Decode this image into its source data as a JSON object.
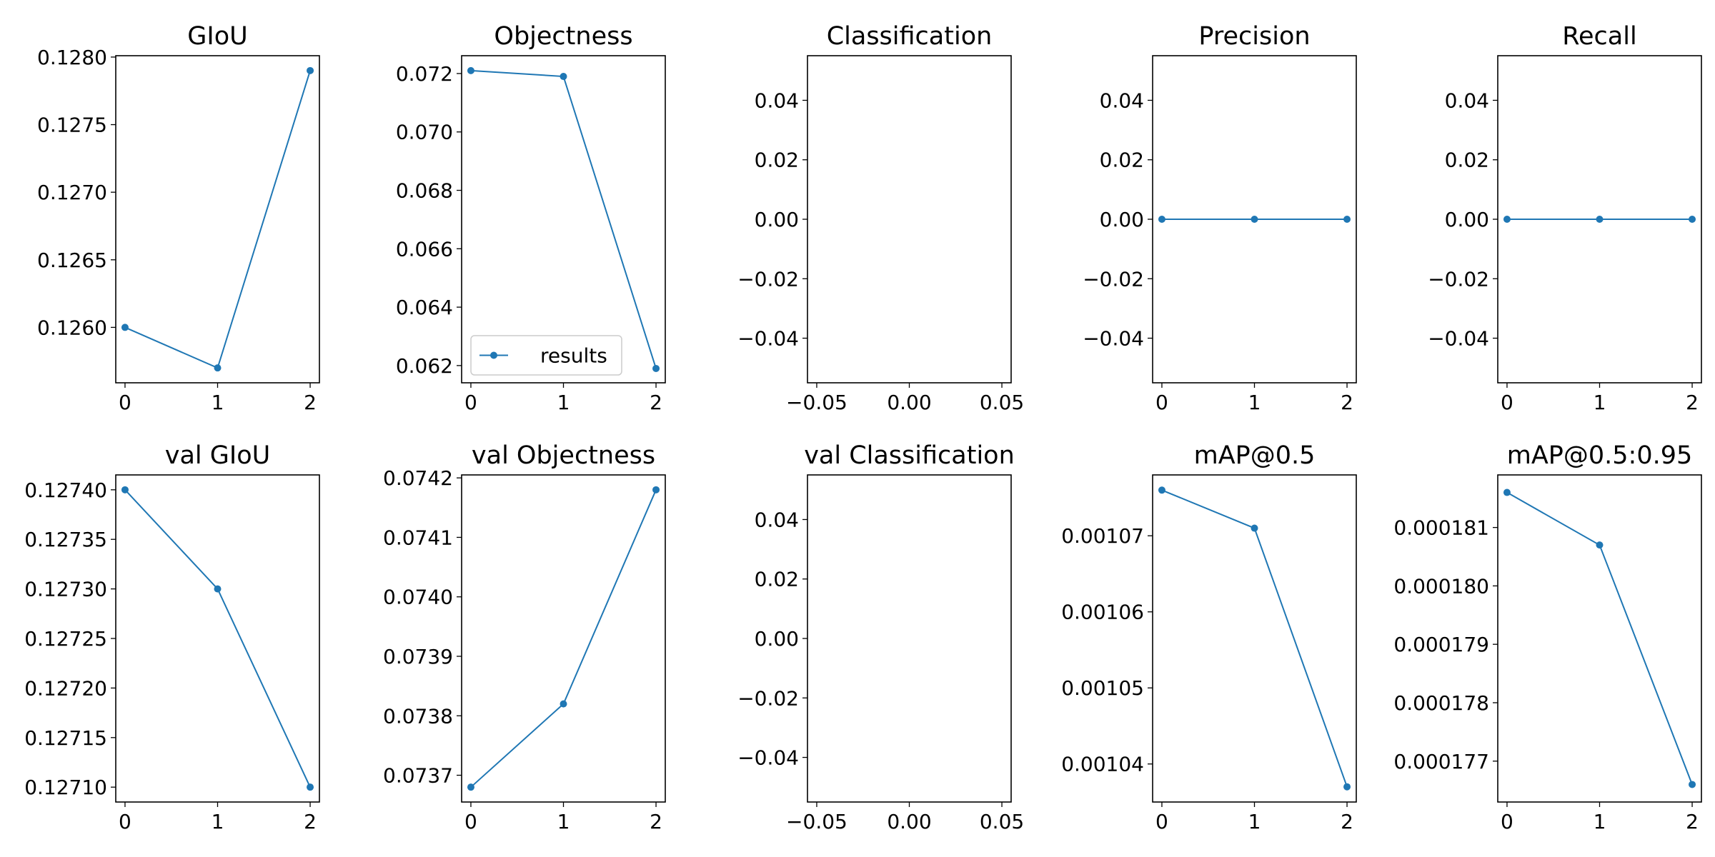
{
  "line_color": "#1f77b4",
  "chart_data": [
    {
      "type": "line",
      "title": "GIoU",
      "x": [
        0,
        1,
        2
      ],
      "values": [
        0.126,
        0.1257,
        0.1279
      ],
      "xlim": [
        -0.1,
        2.1
      ],
      "ylim": [
        0.12559,
        0.12801
      ],
      "xticks": [
        "0",
        "1",
        "2"
      ],
      "yticks": [
        "0.1260",
        "0.1265",
        "0.1270",
        "0.1275",
        "0.1280"
      ]
    },
    {
      "type": "line",
      "title": "Objectness",
      "x": [
        0,
        1,
        2
      ],
      "values": [
        0.0721,
        0.0719,
        0.0619
      ],
      "xlim": [
        -0.1,
        2.1
      ],
      "ylim": [
        0.06141,
        0.07261
      ],
      "xticks": [
        "0",
        "1",
        "2"
      ],
      "yticks": [
        "0.062",
        "0.064",
        "0.066",
        "0.068",
        "0.070",
        "0.072"
      ],
      "legend": {
        "entries": [
          "results"
        ],
        "position": "lower-left"
      }
    },
    {
      "type": "line",
      "title": "Classification",
      "x": [],
      "values": [],
      "xlim": [
        -0.055,
        0.055
      ],
      "ylim": [
        -0.055,
        0.055
      ],
      "xticks": [
        "−0.05",
        "0.00",
        "0.05"
      ],
      "yticks": [
        "−0.04",
        "−0.02",
        "0.00",
        "0.02",
        "0.04"
      ]
    },
    {
      "type": "line",
      "title": "Precision",
      "x": [
        0,
        1,
        2
      ],
      "values": [
        0,
        0,
        0
      ],
      "xlim": [
        -0.1,
        2.1
      ],
      "ylim": [
        -0.055,
        0.055
      ],
      "xticks": [
        "0",
        "1",
        "2"
      ],
      "yticks": [
        "−0.04",
        "−0.02",
        "0.00",
        "0.02",
        "0.04"
      ]
    },
    {
      "type": "line",
      "title": "Recall",
      "x": [
        0,
        1,
        2
      ],
      "values": [
        0,
        0,
        0
      ],
      "xlim": [
        -0.1,
        2.1
      ],
      "ylim": [
        -0.055,
        0.055
      ],
      "xticks": [
        "0",
        "1",
        "2"
      ],
      "yticks": [
        "−0.04",
        "−0.02",
        "0.00",
        "0.02",
        "0.04"
      ]
    },
    {
      "type": "line",
      "title": "val GIoU",
      "x": [
        0,
        1,
        2
      ],
      "values": [
        0.1274,
        0.1273,
        0.1271
      ],
      "xlim": [
        -0.1,
        2.1
      ],
      "ylim": [
        0.127085,
        0.127415
      ],
      "xticks": [
        "0",
        "1",
        "2"
      ],
      "yticks": [
        "0.12710",
        "0.12715",
        "0.12720",
        "0.12725",
        "0.12730",
        "0.12735",
        "0.12740"
      ]
    },
    {
      "type": "line",
      "title": "val Objectness",
      "x": [
        0,
        1,
        2
      ],
      "values": [
        0.07368,
        0.07382,
        0.07418
      ],
      "xlim": [
        -0.1,
        2.1
      ],
      "ylim": [
        0.073655,
        0.074205
      ],
      "xticks": [
        "0",
        "1",
        "2"
      ],
      "yticks": [
        "0.0737",
        "0.0738",
        "0.0739",
        "0.0740",
        "0.0741",
        "0.0742"
      ]
    },
    {
      "type": "line",
      "title": "val Classification",
      "x": [],
      "values": [],
      "xlim": [
        -0.055,
        0.055
      ],
      "ylim": [
        -0.055,
        0.055
      ],
      "xticks": [
        "−0.05",
        "0.00",
        "0.05"
      ],
      "yticks": [
        "−0.04",
        "−0.02",
        "0.00",
        "0.02",
        "0.04"
      ]
    },
    {
      "type": "line",
      "title": "mAP@0.5",
      "x": [
        0,
        1,
        2
      ],
      "values": [
        0.001076,
        0.001071,
        0.001037
      ],
      "xlim": [
        -0.1,
        2.1
      ],
      "ylim": [
        0.001035,
        0.001078
      ],
      "xticks": [
        "0",
        "1",
        "2"
      ],
      "yticks": [
        "0.00104",
        "0.00105",
        "0.00106",
        "0.00107"
      ]
    },
    {
      "type": "line",
      "title": "mAP@0.5:0.95",
      "x": [
        0,
        1,
        2
      ],
      "values": [
        0.0001816,
        0.0001807,
        0.0001766
      ],
      "xlim": [
        -0.1,
        2.1
      ],
      "ylim": [
        0.0001763,
        0.0001819
      ],
      "xticks": [
        "0",
        "1",
        "2"
      ],
      "yticks": [
        "0.000177",
        "0.000178",
        "0.000179",
        "0.000180",
        "0.000181"
      ]
    }
  ]
}
